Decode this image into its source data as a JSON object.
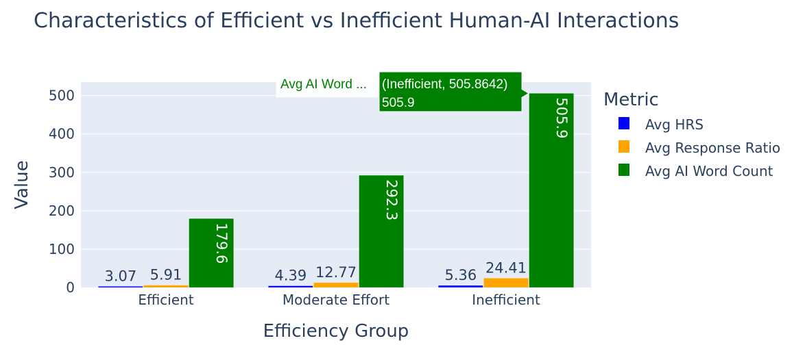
{
  "chart_data": {
    "type": "bar",
    "title": "Characteristics of Efficient vs Inefficient Human-AI Interactions",
    "xlabel": "Efficiency Group",
    "ylabel": "Value",
    "categories": [
      "Efficient",
      "Moderate Effort",
      "Inefficient"
    ],
    "ylim": [
      0,
      535
    ],
    "yticks": [
      0,
      100,
      200,
      300,
      400,
      500
    ],
    "ytick_labels": [
      "0",
      "100",
      "200",
      "300",
      "400",
      "500"
    ],
    "grid": true,
    "legend": {
      "title": "Metric",
      "placement": "right"
    },
    "series": [
      {
        "name": "Avg HRS",
        "color": "#0000ff",
        "values": [
          3.07,
          4.39,
          5.36
        ],
        "labels": [
          "3.07",
          "4.39",
          "5.36"
        ],
        "label_position": "outside"
      },
      {
        "name": "Avg Response Ratio",
        "color": "#ffa500",
        "values": [
          5.91,
          12.77,
          24.41
        ],
        "labels": [
          "5.91",
          "12.77",
          "24.41"
        ],
        "label_position": "outside"
      },
      {
        "name": "Avg AI Word Count",
        "color": "#008000",
        "values": [
          179.6,
          292.3,
          505.9
        ],
        "labels": [
          "179.6",
          "292.3",
          "505.9"
        ],
        "label_position": "inside-rotated"
      }
    ],
    "hover": {
      "series_name": "Avg AI Word ...",
      "line1": "(Inefficient, 505.8642)",
      "line2": "505.9",
      "category": "Inefficient",
      "value": 505.8642
    }
  }
}
